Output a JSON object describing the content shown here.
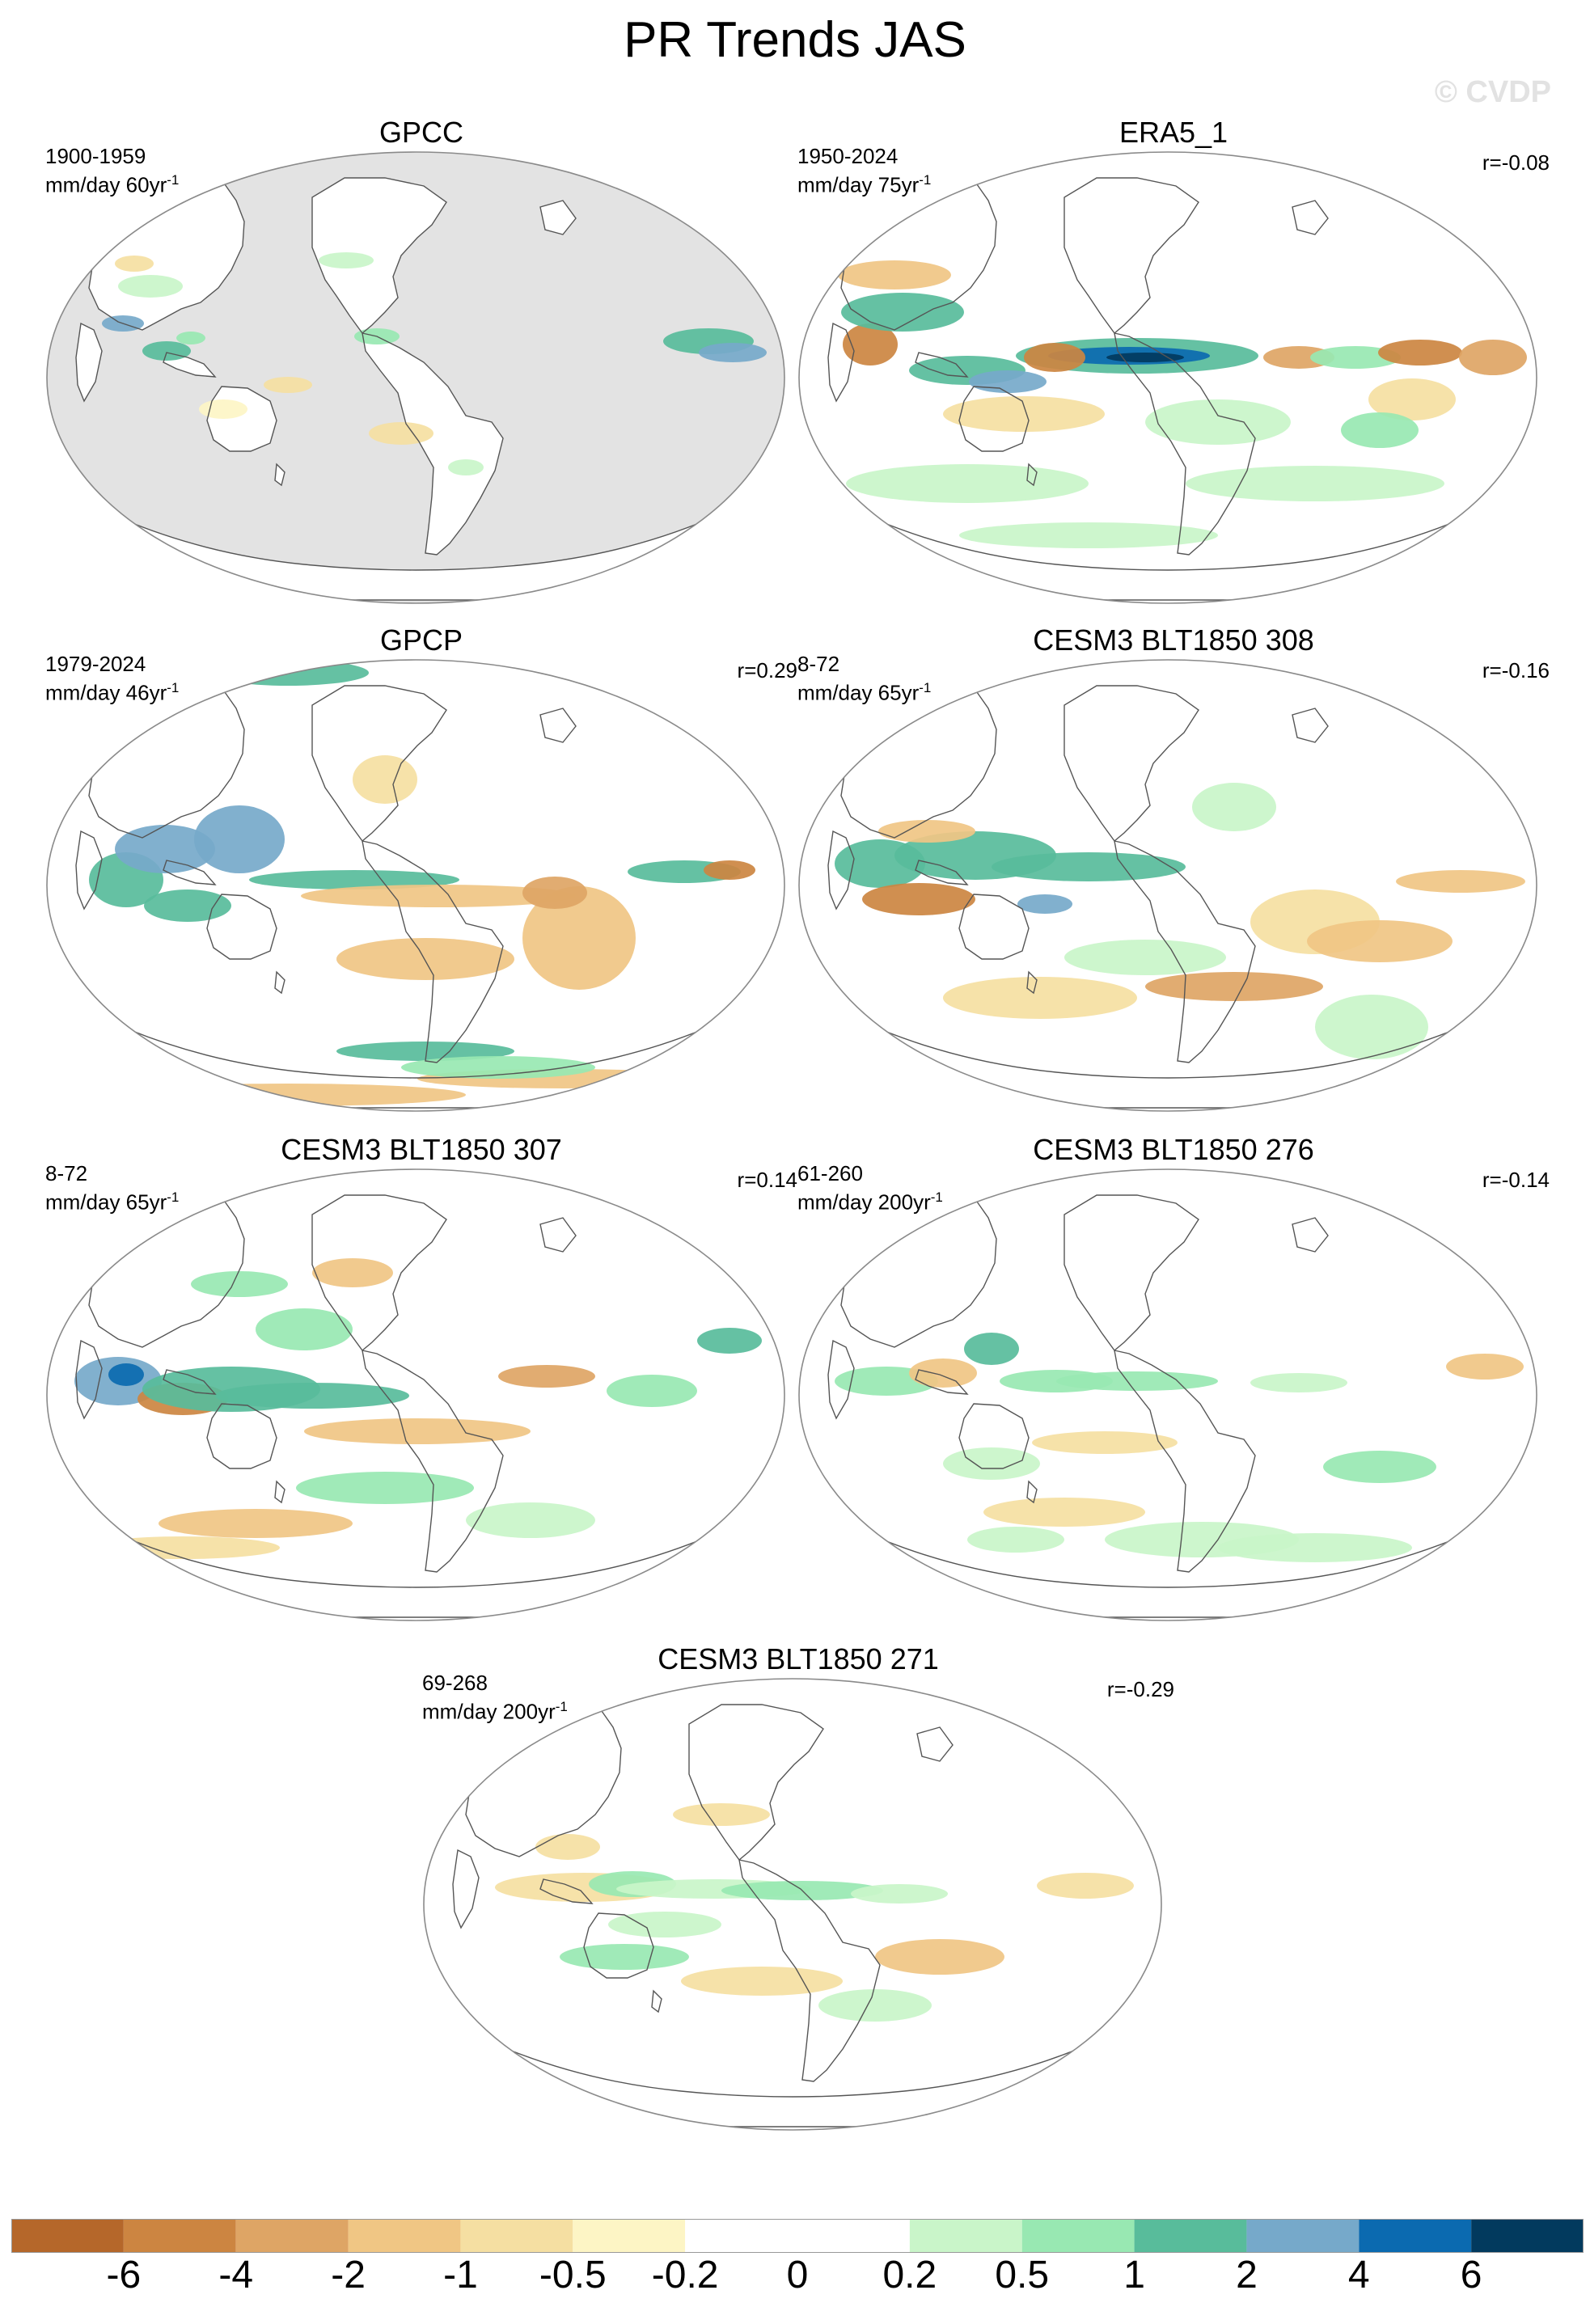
{
  "figure": {
    "title": "PR Trends JAS",
    "watermark": "© CVDP"
  },
  "land_icon": "continent-outline-icon",
  "panels": [
    {
      "title": "GPCC",
      "period": "1900-1959",
      "units": "mm/day 60yr",
      "units_sup": "-1",
      "corr": "",
      "background": "#e3e3e3"
    },
    {
      "title": "ERA5_1",
      "period": "1950-2024",
      "units": "mm/day 75yr",
      "units_sup": "-1",
      "corr": "r=-0.08",
      "background": "#ffffff"
    },
    {
      "title": "GPCP",
      "period": "1979-2024",
      "units": "mm/day 46yr",
      "units_sup": "-1",
      "corr": "r=0.29",
      "background": "#ffffff"
    },
    {
      "title": "CESM3 BLT1850 308",
      "period": "8-72",
      "units": "mm/day 65yr",
      "units_sup": "-1",
      "corr": "r=-0.16",
      "background": "#ffffff"
    },
    {
      "title": "CESM3 BLT1850 307",
      "period": "8-72",
      "units": "mm/day 65yr",
      "units_sup": "-1",
      "corr": "r=0.14",
      "background": "#ffffff"
    },
    {
      "title": "CESM3 BLT1850 276",
      "period": "61-260",
      "units": "mm/day 200yr",
      "units_sup": "-1",
      "corr": "r=-0.14",
      "background": "#ffffff"
    },
    {
      "title": "CESM3 BLT1850 271",
      "period": "69-268",
      "units": "mm/day 200yr",
      "units_sup": "-1",
      "corr": "r=-0.29",
      "background": "#ffffff"
    }
  ],
  "colorbar": {
    "labels": [
      "-6",
      "-4",
      "-2",
      "-1",
      "-0.5",
      "-0.2",
      "0",
      "0.2",
      "0.5",
      "1",
      "2",
      "4",
      "6"
    ],
    "colors": [
      "#b5672a",
      "#cc8541",
      "#dea565",
      "#f0c684",
      "#f5dfa2",
      "#fdf5c5",
      "#ffffff",
      "#ffffff",
      "#c9f5c9",
      "#98e8b2",
      "#58bc9b",
      "#76a9ca",
      "#0b6ab0",
      "#023a5e"
    ]
  }
}
